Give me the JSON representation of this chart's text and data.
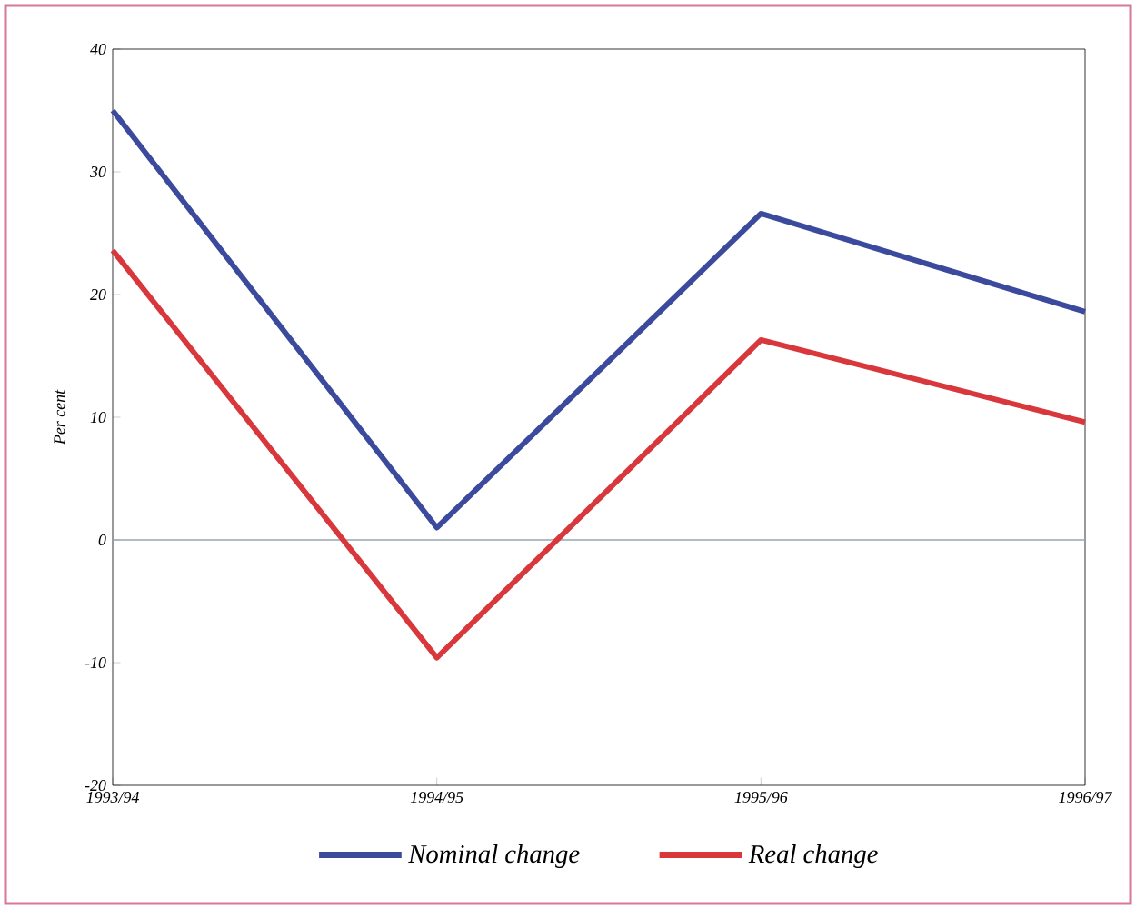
{
  "chart_data": {
    "type": "line",
    "ylabel": "Per cent",
    "categories": [
      "1993/94",
      "1994/95",
      "1995/96",
      "1996/97"
    ],
    "series": [
      {
        "name": "Nominal change",
        "color": "#3b4a9c",
        "values": [
          35,
          1,
          26.6,
          18.6
        ]
      },
      {
        "name": "Real change",
        "color": "#d8383c",
        "values": [
          23.6,
          -9.6,
          16.3,
          9.6
        ]
      }
    ],
    "ylim": [
      -20,
      40
    ],
    "yticks": [
      -20,
      -10,
      0,
      10,
      20,
      30,
      40
    ],
    "ref_lines": [
      {
        "axis": "y",
        "value": 0,
        "color": "#9aa4b4"
      }
    ],
    "legend": "bottom",
    "marker": "none",
    "line_style": "solid"
  }
}
